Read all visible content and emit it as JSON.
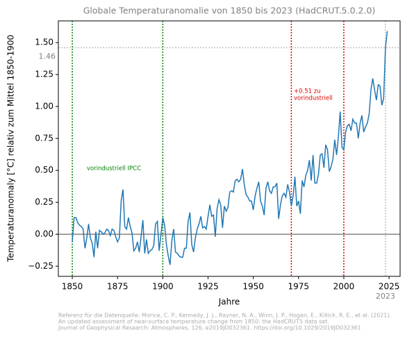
{
  "chart_data": {
    "type": "line",
    "title": "Globale Temperaturanomalie von 1850 bis 2023 (HadCRUT.5.0.2.0)",
    "x_label": "Jahre",
    "y_label": "Temperaturanomaly [°C] relativ zum Mittel 1850-1900",
    "x": [
      1850,
      1851,
      1852,
      1853,
      1854,
      1855,
      1856,
      1857,
      1858,
      1859,
      1860,
      1861,
      1862,
      1863,
      1864,
      1865,
      1866,
      1867,
      1868,
      1869,
      1870,
      1871,
      1872,
      1873,
      1874,
      1875,
      1876,
      1877,
      1878,
      1879,
      1880,
      1881,
      1882,
      1883,
      1884,
      1885,
      1886,
      1887,
      1888,
      1889,
      1890,
      1891,
      1892,
      1893,
      1894,
      1895,
      1896,
      1897,
      1898,
      1899,
      1900,
      1901,
      1902,
      1903,
      1904,
      1905,
      1906,
      1907,
      1908,
      1909,
      1910,
      1911,
      1912,
      1913,
      1914,
      1915,
      1916,
      1917,
      1918,
      1919,
      1920,
      1921,
      1922,
      1923,
      1924,
      1925,
      1926,
      1927,
      1928,
      1929,
      1930,
      1931,
      1932,
      1933,
      1934,
      1935,
      1936,
      1937,
      1938,
      1939,
      1940,
      1941,
      1942,
      1943,
      1944,
      1945,
      1946,
      1947,
      1948,
      1949,
      1950,
      1951,
      1952,
      1953,
      1954,
      1955,
      1956,
      1957,
      1958,
      1959,
      1960,
      1961,
      1962,
      1963,
      1964,
      1965,
      1966,
      1967,
      1968,
      1969,
      1970,
      1971,
      1972,
      1973,
      1974,
      1975,
      1976,
      1977,
      1978,
      1979,
      1980,
      1981,
      1982,
      1983,
      1984,
      1985,
      1986,
      1987,
      1988,
      1989,
      1990,
      1991,
      1992,
      1993,
      1994,
      1995,
      1996,
      1997,
      1998,
      1999,
      2000,
      2001,
      2002,
      2003,
      2004,
      2005,
      2006,
      2007,
      2008,
      2009,
      2010,
      2011,
      2012,
      2013,
      2014,
      2015,
      2016,
      2017,
      2018,
      2019,
      2020,
      2021,
      2022,
      2023,
      2024
    ],
    "series": [
      {
        "color": "#1f77b4",
        "values": [
          -0.06,
          0.13,
          0.13,
          0.09,
          0.07,
          0.06,
          0.04,
          -0.11,
          -0.03,
          0.08,
          -0.03,
          -0.07,
          -0.18,
          0.02,
          -0.11,
          0.03,
          0.02,
          0.0,
          0.01,
          0.04,
          0.03,
          -0.01,
          0.04,
          0.03,
          -0.02,
          -0.06,
          -0.03,
          0.26,
          0.35,
          0.06,
          0.04,
          0.13,
          0.06,
          0.01,
          -0.13,
          -0.11,
          -0.06,
          -0.14,
          -0.02,
          0.11,
          -0.15,
          -0.04,
          -0.15,
          -0.13,
          -0.12,
          -0.09,
          0.08,
          0.1,
          -0.13,
          0.0,
          0.13,
          0.07,
          -0.08,
          -0.17,
          -0.24,
          -0.05,
          0.04,
          -0.14,
          -0.15,
          -0.17,
          -0.18,
          -0.18,
          -0.11,
          -0.11,
          0.1,
          0.17,
          -0.08,
          -0.14,
          -0.03,
          0.04,
          0.08,
          0.14,
          0.05,
          0.06,
          0.04,
          0.14,
          0.23,
          0.14,
          0.15,
          -0.02,
          0.2,
          0.27,
          0.23,
          0.05,
          0.22,
          0.18,
          0.21,
          0.33,
          0.34,
          0.33,
          0.42,
          0.43,
          0.41,
          0.43,
          0.51,
          0.39,
          0.31,
          0.29,
          0.26,
          0.26,
          0.19,
          0.3,
          0.36,
          0.41,
          0.26,
          0.22,
          0.15,
          0.36,
          0.41,
          0.34,
          0.32,
          0.37,
          0.37,
          0.4,
          0.12,
          0.23,
          0.3,
          0.32,
          0.29,
          0.39,
          0.33,
          0.22,
          0.3,
          0.45,
          0.22,
          0.26,
          0.16,
          0.42,
          0.37,
          0.46,
          0.5,
          0.58,
          0.42,
          0.62,
          0.4,
          0.4,
          0.47,
          0.62,
          0.63,
          0.52,
          0.7,
          0.66,
          0.49,
          0.53,
          0.59,
          0.74,
          0.62,
          0.76,
          0.96,
          0.68,
          0.66,
          0.8,
          0.85,
          0.86,
          0.81,
          0.9,
          0.87,
          0.87,
          0.75,
          0.87,
          0.93,
          0.8,
          0.84,
          0.87,
          0.94,
          1.13,
          1.22,
          1.13,
          1.05,
          1.17,
          1.16,
          1.01,
          1.06,
          1.46,
          1.59
        ]
      }
    ],
    "xlim": [
      1842.3,
      2031.1
    ],
    "ylim": [
      -0.33,
      1.67
    ],
    "xticks": [
      1850,
      1875,
      1900,
      1925,
      1950,
      1975,
      2000,
      2025
    ],
    "yticks": [
      {
        "value": -0.25,
        "label": "−0.25"
      },
      {
        "value": 0,
        "label": "0.00"
      },
      {
        "value": 0.25,
        "label": "0.25"
      },
      {
        "value": 0.5,
        "label": "0.50"
      },
      {
        "value": 0.75,
        "label": "0.75"
      },
      {
        "value": 1,
        "label": "1.00"
      },
      {
        "value": 1.25,
        "label": "1.25"
      },
      {
        "value": 1.5,
        "label": "1.50"
      }
    ],
    "reference_lines": [
      {
        "axis": "y",
        "value": 0,
        "color": "#808080",
        "style": "solid"
      },
      {
        "axis": "x",
        "value": 1850,
        "color": "#008000",
        "style": "dotted"
      },
      {
        "axis": "x",
        "value": 1900,
        "color": "#008000",
        "style": "dotted"
      },
      {
        "axis": "x",
        "value": 1971,
        "color": "#dd0000",
        "style": "dotted"
      },
      {
        "axis": "x",
        "value": 2000,
        "color": "#dd0000",
        "style": "dotted"
      },
      {
        "axis": "y",
        "value": 1.46,
        "label": "1.46",
        "color": "#c0c0c0",
        "style": "dotted"
      },
      {
        "axis": "x",
        "value": 2023,
        "label": "2023",
        "color": "#c0c0c0",
        "style": "dotted"
      }
    ],
    "annotations": [
      {
        "lines": [
          "vorindustriell IPCC"
        ],
        "color": "#008000"
      },
      {
        "lines": [
          "+0.51 zu",
          "vorindustriell"
        ],
        "color": "#dd0000"
      }
    ],
    "footnote": [
      "Referenz für die Datenquelle: Morice, C. P., Kennedy, J. J., Rayner, N. A., Winn, J. P., Hogan, E., Killick, R. E., et al. (2021).",
      "An updated assessment of near-surface temperature change from 1850: the HadCRUT5 data set.",
      "Journal of Geophysical Research: Atmospheres, 126, e2019JD032361. https://doi.org/10.1029/2019JD032361"
    ]
  }
}
